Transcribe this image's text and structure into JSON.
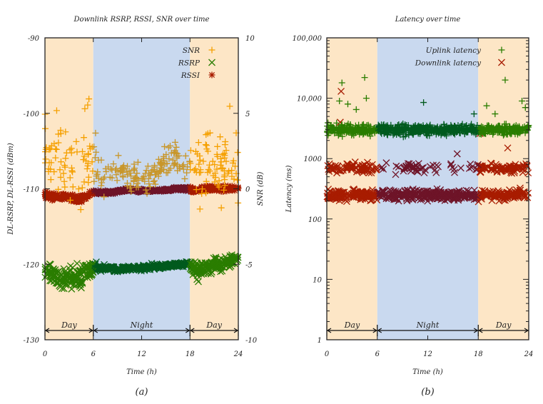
{
  "chart_data": [
    {
      "type": "scatter",
      "title": "Downlink RSRP, RSSI, SNR over time",
      "xlabel": "Time (h)",
      "ylabel": "DL-RSRP, DL-RSSI (dBm)",
      "y2label": "SNR (dB)",
      "xlim": [
        0,
        24
      ],
      "ylim": [
        -130,
        -90
      ],
      "y2lim": [
        -10,
        10
      ],
      "xticks": [
        "0",
        "6",
        "12",
        "18",
        "24"
      ],
      "yticks": [
        "-90",
        "-100",
        "-110",
        "-120",
        "-130"
      ],
      "y2ticks": [
        "10",
        "5",
        "0",
        "-5",
        "-10"
      ],
      "legend_position": "top-right",
      "caption": "(a)",
      "periods": [
        {
          "label": "Day",
          "from": 0,
          "to": 6
        },
        {
          "label": "Night",
          "from": 6,
          "to": 18
        },
        {
          "label": "Day",
          "from": 18,
          "to": 24
        }
      ],
      "hours": [
        0,
        1,
        2,
        3,
        4,
        5,
        6,
        7,
        8,
        9,
        10,
        11,
        12,
        13,
        14,
        15,
        16,
        17,
        18,
        19,
        20,
        21,
        22,
        23,
        24
      ],
      "series": [
        {
          "name": "SNR",
          "axis": "right",
          "marker": "+",
          "day_color": "#f5a000",
          "night_color": "#c8962a",
          "median": [
            2,
            2.5,
            2,
            1.5,
            1,
            2,
            1.5,
            1,
            1,
            1.2,
            1,
            0.8,
            0.7,
            0.9,
            1.2,
            1.5,
            2,
            2,
            1.5,
            1.5,
            2,
            1.5,
            1.5,
            1.8,
            1.5
          ],
          "spread": [
            2.5,
            2.5,
            2.5,
            3,
            3.5,
            2.5,
            1.5,
            1.2,
            1.2,
            1.2,
            1.2,
            1.2,
            1.2,
            1.2,
            1.2,
            1.2,
            1.2,
            1.2,
            2.5,
            3,
            2.5,
            2.5,
            2.5,
            2.5,
            2.5
          ]
        },
        {
          "name": "RSRP",
          "axis": "left",
          "marker": "x",
          "day_color": "#2a7d00",
          "night_color": "#005a1e",
          "median": [
            -121,
            -121.5,
            -122,
            -121.5,
            -122,
            -121,
            -120.5,
            -120.5,
            -120.5,
            -120.7,
            -120.5,
            -120.5,
            -120.5,
            -120.3,
            -120.3,
            -120.2,
            -120.1,
            -120,
            -120,
            -121,
            -120.5,
            -120,
            -120,
            -119.5,
            -119.5
          ],
          "spread": [
            2,
            2.5,
            3,
            3,
            3.5,
            2.5,
            1,
            0.6,
            0.6,
            0.6,
            0.6,
            0.6,
            0.6,
            0.6,
            0.6,
            0.6,
            0.6,
            0.6,
            2,
            2.5,
            2,
            2,
            1.5,
            1.5,
            1.5
          ]
        },
        {
          "name": "RSSI",
          "axis": "left",
          "marker": "*",
          "day_color": "#a81c00",
          "night_color": "#6e1428",
          "median": [
            -110.8,
            -111,
            -111,
            -111,
            -111.5,
            -111,
            -110.5,
            -110.5,
            -110.5,
            -110.3,
            -110.2,
            -110.2,
            -110.2,
            -110.3,
            -110.2,
            -110.2,
            -110,
            -110,
            -110,
            -110.2,
            -110,
            -110,
            -110,
            -110,
            -110
          ],
          "spread": [
            0.8,
            0.9,
            0.9,
            1,
            1.2,
            1,
            0.5,
            0.4,
            0.4,
            0.4,
            0.4,
            0.4,
            0.4,
            0.4,
            0.4,
            0.4,
            0.4,
            0.4,
            0.6,
            0.6,
            0.6,
            0.6,
            0.6,
            0.6,
            0.6
          ]
        }
      ]
    },
    {
      "type": "scatter",
      "title": "Latency over time",
      "xlabel": "Time (h)",
      "ylabel": "Latency (ms)",
      "scale": "log",
      "xlim": [
        0,
        24
      ],
      "ylim": [
        1,
        100000
      ],
      "xticks": [
        "0",
        "6",
        "12",
        "18",
        "24"
      ],
      "yticks": [
        "1",
        "10",
        "100",
        "1000",
        "10,000",
        "100,000"
      ],
      "legend_position": "top-right",
      "caption": "(b)",
      "periods": [
        {
          "label": "Day",
          "from": 0,
          "to": 6
        },
        {
          "label": "Night",
          "from": 6,
          "to": 18
        },
        {
          "label": "Day",
          "from": 18,
          "to": 24
        }
      ],
      "series": [
        {
          "name": "Uplink latency",
          "marker": "+",
          "day_color": "#2a7d00",
          "night_color": "#005a1e",
          "median_ms": 3000,
          "spread_decades": 0.08,
          "outliers": [
            [
              1.5,
              9000
            ],
            [
              1.8,
              18000
            ],
            [
              2.5,
              8000
            ],
            [
              4.5,
              22000
            ],
            [
              4.7,
              10000
            ],
            [
              3.5,
              6500
            ],
            [
              11.5,
              8500
            ],
            [
              17.5,
              5500
            ],
            [
              19,
              7500
            ],
            [
              20,
              5500
            ],
            [
              21.2,
              20000
            ],
            [
              23.2,
              9000
            ],
            [
              23.6,
              7000
            ]
          ]
        },
        {
          "name": "Downlink latency",
          "marker": "x",
          "day_color": "#a81c00",
          "night_color": "#6e1428",
          "modes_ms": [
            250,
            700
          ],
          "spread_decades": 0.08,
          "outliers": [
            [
              1.7,
              13000
            ],
            [
              1.6,
              4000
            ],
            [
              15.5,
              1200
            ],
            [
              18.2,
              2600
            ],
            [
              21.5,
              1500
            ]
          ]
        }
      ]
    }
  ]
}
